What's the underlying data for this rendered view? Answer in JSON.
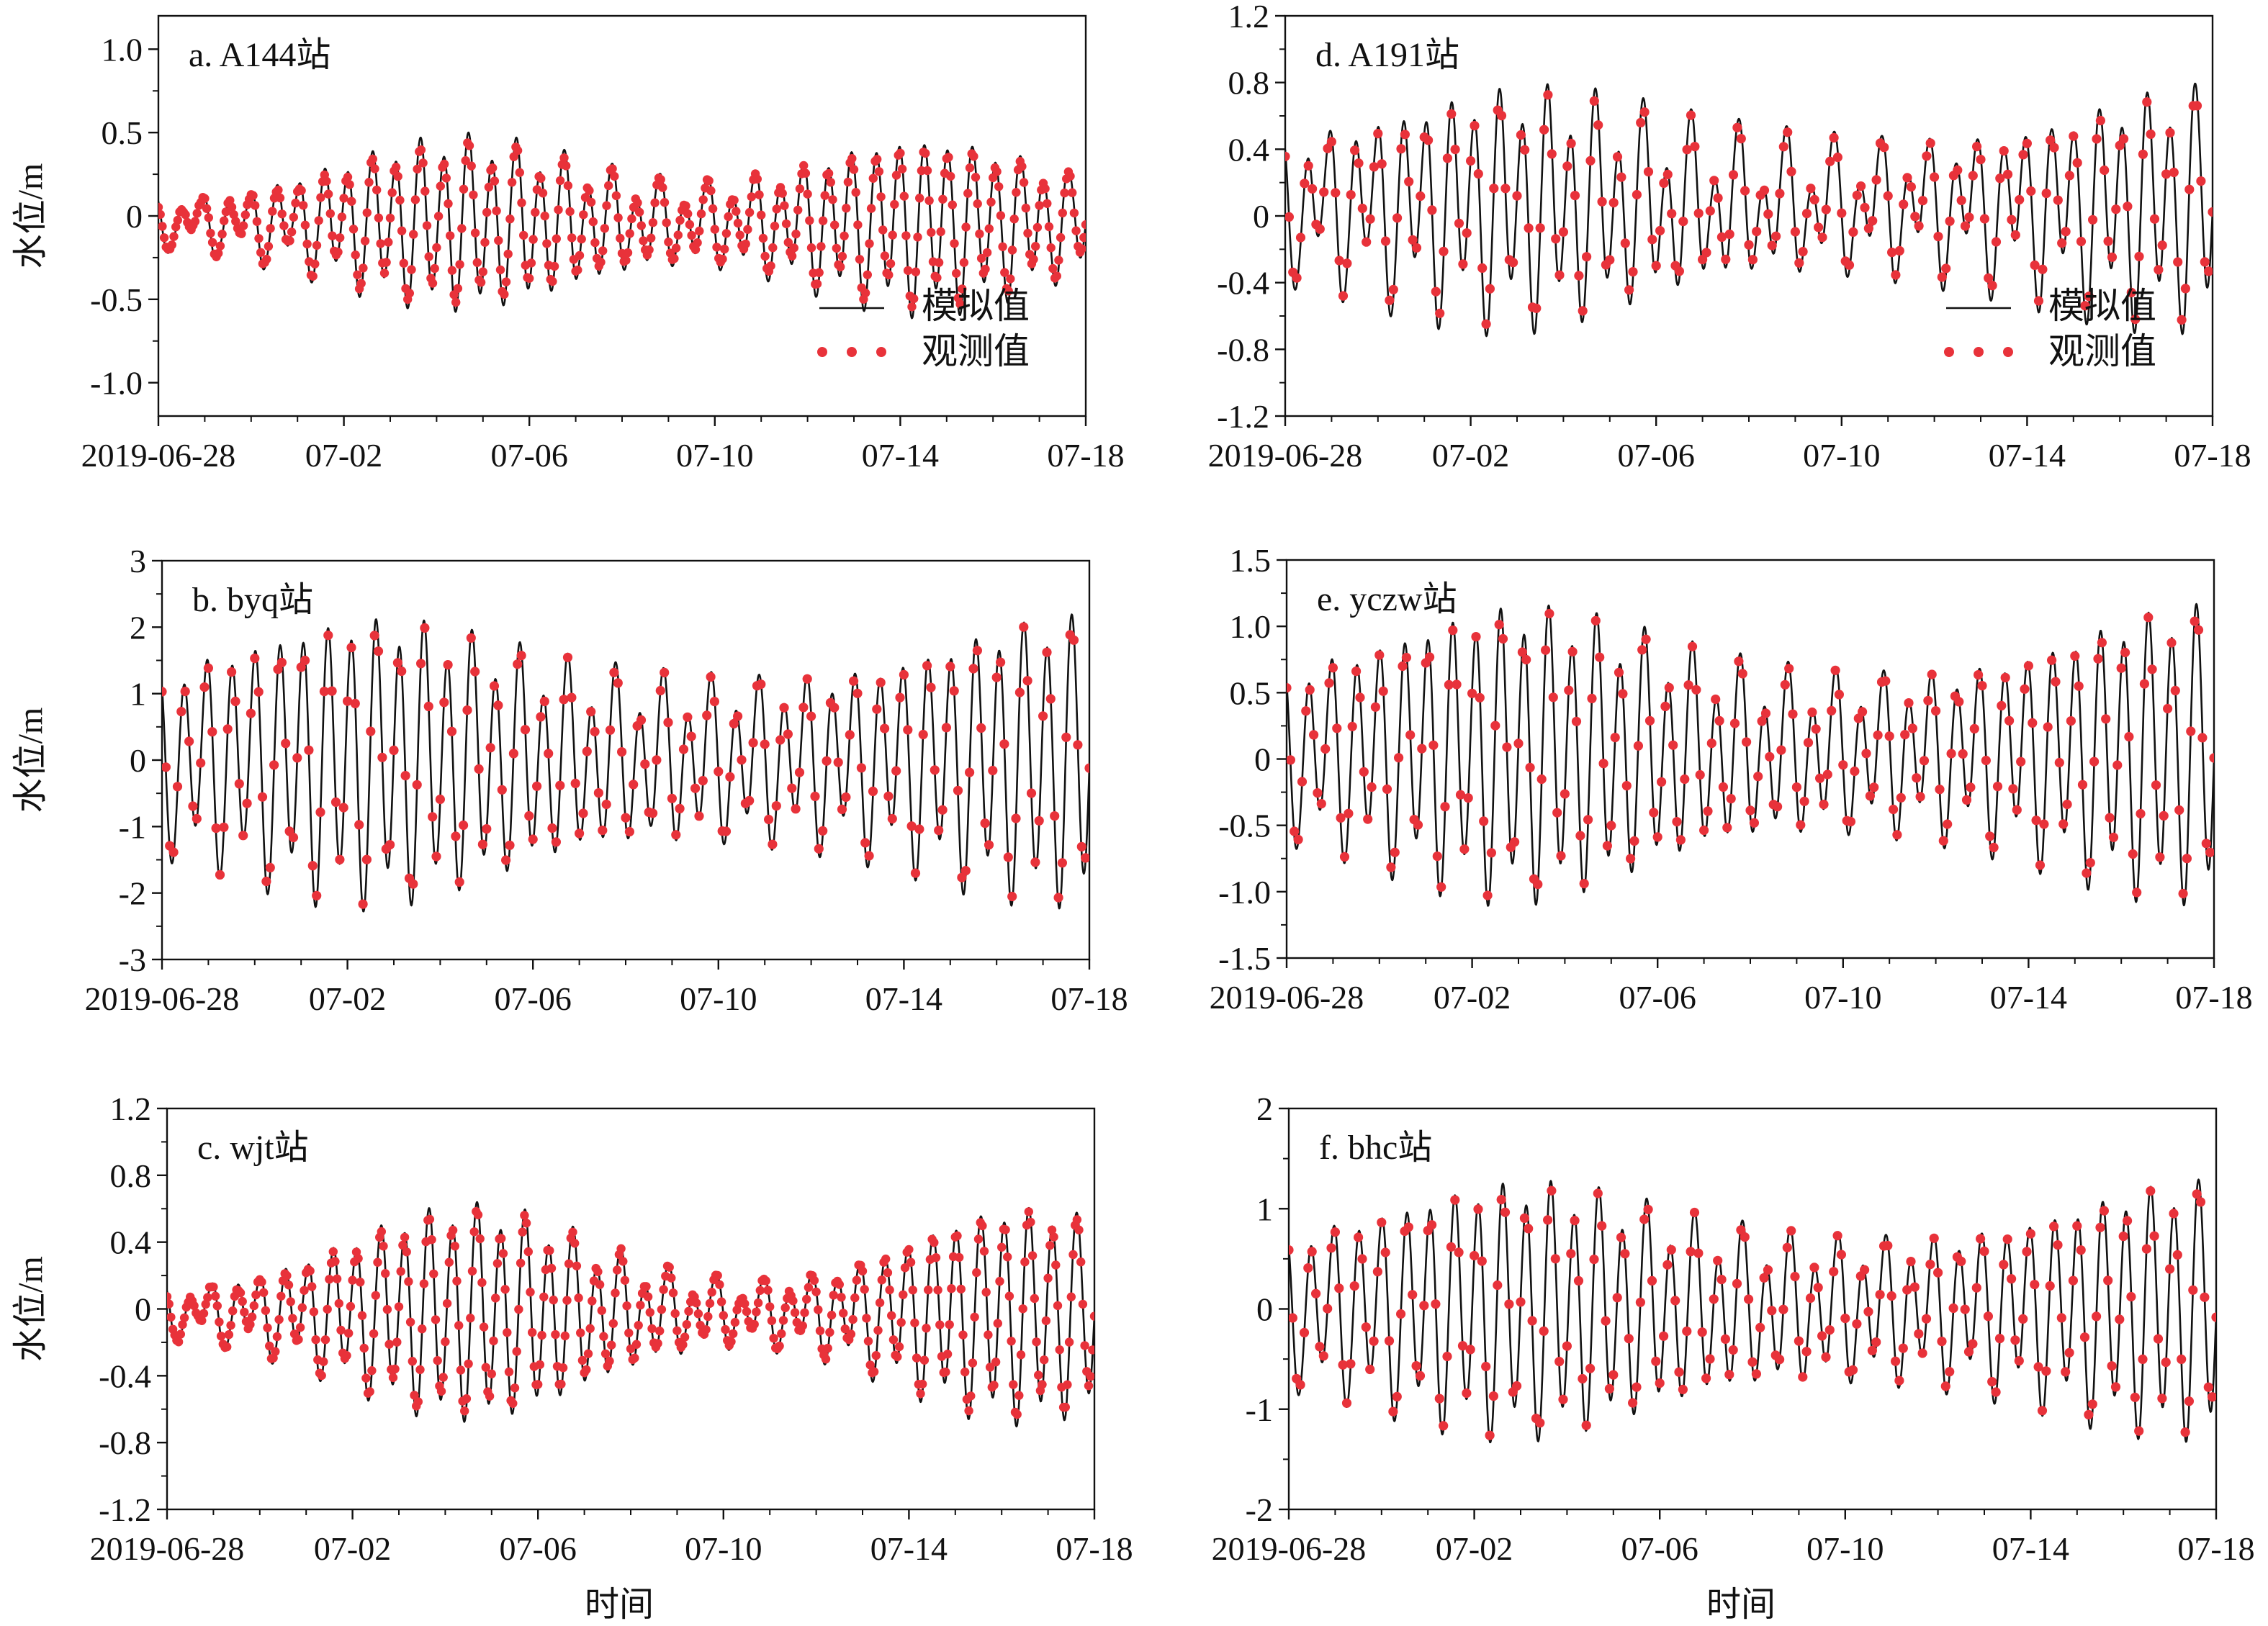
{
  "figure": {
    "x_axis_title": "时间",
    "y_axis_title": "水位/m",
    "legend": {
      "simulated": "模拟值",
      "observed": "观测值"
    },
    "colors": {
      "simulated": "#111111",
      "observed": "#e8323a",
      "axes": "#111111"
    }
  },
  "chart_data": [
    {
      "id": "a",
      "type": "line",
      "label": "a. A144站",
      "xlabel": "",
      "ylabel": "水位/m",
      "x_ticks": [
        "2019-06-28",
        "07-02",
        "07-06",
        "07-10",
        "07-14",
        "07-18"
      ],
      "y_ticks": [
        "1.0",
        "0.5",
        "0",
        "-0.5",
        "-1.0"
      ],
      "y_tick_values": [
        1.0,
        0.5,
        0,
        -0.5,
        -1.0
      ],
      "ylim": [
        -1.2,
        1.2
      ],
      "x_range_days": [
        0,
        20
      ],
      "legend": true,
      "series_params": {
        "spring_amp": 0.42,
        "neap_amp": 0.08,
        "diurnal": 0.08,
        "mean": -0.04,
        "spring_centers": [
          6.5,
          16.5
        ],
        "sim_bias": 1.12
      }
    },
    {
      "id": "b",
      "type": "line",
      "label": "b. byq站",
      "xlabel": "",
      "ylabel": "水位/m",
      "x_ticks": [
        "2019-06-28",
        "07-02",
        "07-06",
        "07-10",
        "07-14",
        "07-18"
      ],
      "y_ticks": [
        "3",
        "2",
        "1",
        "0",
        "-1",
        "-2",
        "-3"
      ],
      "y_tick_values": [
        3,
        2,
        1,
        0,
        -1,
        -2,
        -3
      ],
      "ylim": [
        -3,
        3
      ],
      "x_range_days": [
        0,
        20
      ],
      "legend": false,
      "series_params": {
        "spring_amp": 1.85,
        "neap_amp": 0.95,
        "diurnal": 0.35,
        "mean": 0.0,
        "spring_centers": [
          4.5,
          19.5
        ],
        "sim_bias": 1.05
      }
    },
    {
      "id": "c",
      "type": "line",
      "label": "c. wjt站",
      "xlabel": "时间",
      "ylabel": "水位/m",
      "x_ticks": [
        "2019-06-28",
        "07-02",
        "07-06",
        "07-10",
        "07-14",
        "07-18"
      ],
      "y_ticks": [
        "1.2",
        "0.8",
        "0.4",
        "0",
        "-0.4",
        "-0.8",
        "-1.2"
      ],
      "y_tick_values": [
        1.2,
        0.8,
        0.4,
        0,
        -0.4,
        -0.8,
        -1.2
      ],
      "ylim": [
        -1.2,
        1.2
      ],
      "x_range_days": [
        0,
        20
      ],
      "legend": false,
      "series_params": {
        "spring_amp": 0.55,
        "neap_amp": 0.08,
        "diurnal": 0.08,
        "mean": -0.02,
        "spring_centers": [
          6.5,
          18.5
        ],
        "sim_bias": 1.08
      }
    },
    {
      "id": "d",
      "type": "line",
      "label": "d. A191站",
      "xlabel": "",
      "ylabel": "",
      "x_ticks": [
        "2019-06-28",
        "07-02",
        "07-06",
        "07-10",
        "07-14",
        "07-18"
      ],
      "y_ticks": [
        "1.2",
        "0.8",
        "0.4",
        "0",
        "-0.4",
        "-0.8",
        "-1.2"
      ],
      "y_tick_values": [
        1.2,
        0.8,
        0.4,
        0,
        -0.4,
        -0.8,
        -1.2
      ],
      "ylim": [
        -1.2,
        1.2
      ],
      "x_range_days": [
        0,
        20
      ],
      "legend": true,
      "series_params": {
        "spring_amp": 0.55,
        "neap_amp": 0.25,
        "diurnal": 0.18,
        "mean": 0.06,
        "spring_centers": [
          5.0,
          19.5
        ],
        "sim_bias": 1.1
      }
    },
    {
      "id": "e",
      "type": "line",
      "label": "e. yczw站",
      "xlabel": "",
      "ylabel": "",
      "x_ticks": [
        "2019-06-28",
        "07-02",
        "07-06",
        "07-10",
        "07-14",
        "07-18"
      ],
      "y_ticks": [
        "1.5",
        "1.0",
        "0.5",
        "0",
        "-0.5",
        "-1.0",
        "-1.5"
      ],
      "y_tick_values": [
        1.5,
        1.0,
        0.5,
        0,
        -0.5,
        -1.0,
        -1.5
      ],
      "ylim": [
        -1.5,
        1.5
      ],
      "x_range_days": [
        0,
        20
      ],
      "legend": false,
      "series_params": {
        "spring_amp": 0.95,
        "neap_amp": 0.45,
        "diurnal": 0.18,
        "mean": 0.05,
        "spring_centers": [
          5.0,
          19.5
        ],
        "sim_bias": 1.05
      }
    },
    {
      "id": "f",
      "type": "line",
      "label": "f. bhc站",
      "xlabel": "时间",
      "ylabel": "",
      "x_ticks": [
        "2019-06-28",
        "07-02",
        "07-06",
        "07-10",
        "07-14",
        "07-18"
      ],
      "y_ticks": [
        "2",
        "1",
        "0",
        "-1",
        "-2"
      ],
      "y_tick_values": [
        2,
        1,
        0,
        -1,
        -2
      ],
      "ylim": [
        -2,
        2
      ],
      "x_range_days": [
        0,
        20
      ],
      "legend": false,
      "series_params": {
        "spring_amp": 1.1,
        "neap_amp": 0.55,
        "diurnal": 0.2,
        "mean": 0.0,
        "spring_centers": [
          5.0,
          19.5
        ],
        "sim_bias": 1.05
      }
    }
  ]
}
